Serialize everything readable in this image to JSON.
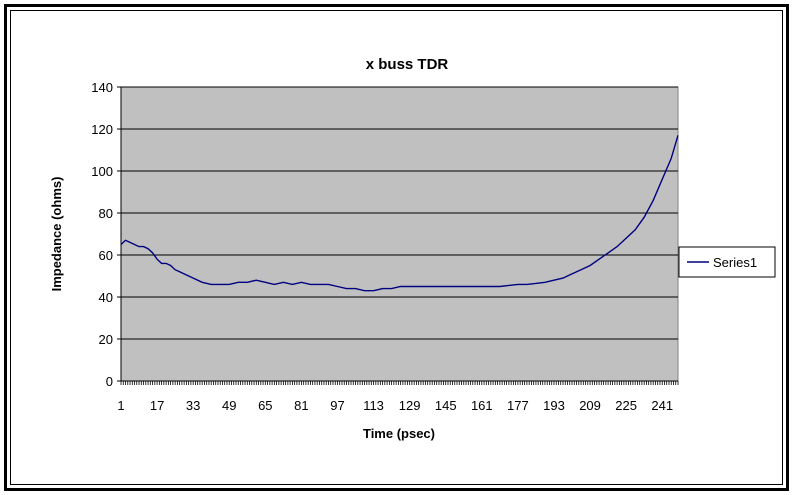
{
  "chart_data": {
    "type": "line",
    "title": "x buss TDR",
    "xlabel": "Time (psec)",
    "ylabel": "Impedance (ohms)",
    "ylim": [
      0,
      140
    ],
    "yticks": [
      0,
      20,
      40,
      60,
      80,
      100,
      120,
      140
    ],
    "xlim": [
      1,
      248
    ],
    "xticks": [
      1,
      17,
      33,
      49,
      65,
      81,
      97,
      113,
      129,
      145,
      161,
      177,
      193,
      209,
      225,
      241
    ],
    "grid": true,
    "legend_position": "right",
    "colors": {
      "plot_area": "#c0c0c0",
      "line": "#000080",
      "gridline": "#000000"
    },
    "series": [
      {
        "name": "Series1",
        "x": [
          1,
          3,
          5,
          7,
          9,
          11,
          13,
          15,
          17,
          19,
          21,
          23,
          25,
          27,
          29,
          33,
          37,
          41,
          45,
          49,
          53,
          57,
          61,
          65,
          69,
          73,
          77,
          81,
          85,
          89,
          93,
          97,
          101,
          105,
          109,
          113,
          117,
          121,
          125,
          129,
          133,
          137,
          141,
          145,
          149,
          153,
          157,
          161,
          165,
          169,
          173,
          177,
          181,
          185,
          189,
          193,
          197,
          201,
          205,
          209,
          213,
          217,
          221,
          225,
          229,
          233,
          237,
          241,
          245,
          248
        ],
        "y": [
          65,
          67,
          66,
          65,
          64,
          64,
          63,
          61,
          58,
          56,
          56,
          55,
          53,
          52,
          51,
          49,
          47,
          46,
          46,
          46,
          47,
          47,
          48,
          47,
          46,
          47,
          46,
          47,
          46,
          46,
          46,
          45,
          44,
          44,
          43,
          43,
          44,
          44,
          45,
          45,
          45,
          45,
          45,
          45,
          45,
          45,
          45,
          45,
          45,
          45,
          45.5,
          46,
          46,
          46.5,
          47,
          48,
          49,
          51,
          53,
          55,
          58,
          61,
          64,
          68,
          72,
          78,
          86,
          96,
          106,
          117
        ]
      }
    ]
  }
}
